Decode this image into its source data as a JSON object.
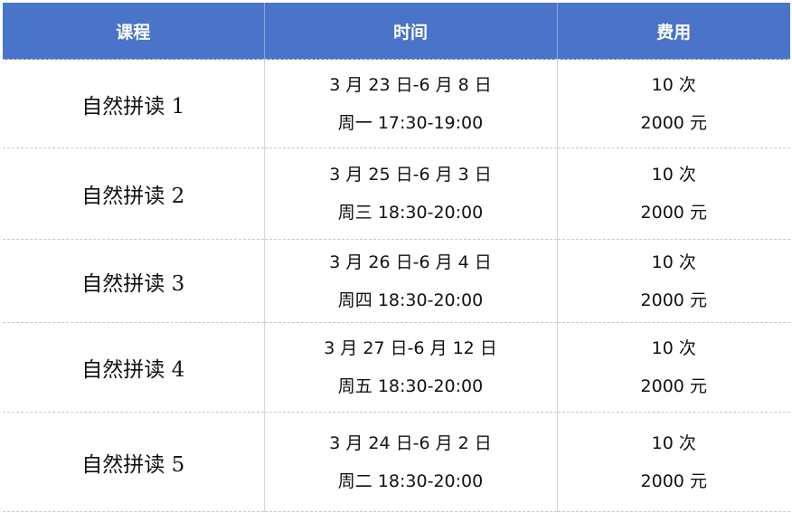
{
  "header": {
    "course": "课程",
    "time": "时间",
    "fee": "费用"
  },
  "rows": [
    {
      "course": "自然拼读 1",
      "dates": "3 月 23 日-6 月 8 日",
      "schedule": "周一 17:30-19:00",
      "sessions": "10 次",
      "price": "2000 元"
    },
    {
      "course": "自然拼读 2",
      "dates": "3 月 25 日-6 月 3 日",
      "schedule": "周三 18:30-20:00",
      "sessions": "10 次",
      "price": "2000 元"
    },
    {
      "course": "自然拼读 3",
      "dates": "3 月 26 日-6 月 4 日",
      "schedule": "周四 18:30-20:00",
      "sessions": "10 次",
      "price": "2000 元"
    },
    {
      "course": "自然拼读 4",
      "dates": "3 月 27 日-6 月 12 日",
      "schedule": "周五 18:30-20:00",
      "sessions": "10 次",
      "price": "2000 元"
    },
    {
      "course": "自然拼读 5",
      "dates": "3 月 24 日-6 月 2 日",
      "schedule": "周二 18:30-20:00",
      "sessions": "10 次",
      "price": "2000 元"
    }
  ],
  "colors": {
    "header_bg": "#4a74c9"
  }
}
